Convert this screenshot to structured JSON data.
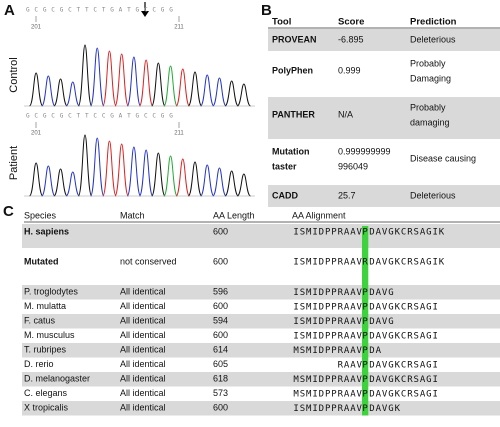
{
  "panel_a": {
    "label": "A",
    "control": {
      "sequence": "G C G C G C T T C T G A T G C C G G",
      "tick_left": "201",
      "tick_right": "211",
      "name": "Control"
    },
    "patient": {
      "sequence": "G C G C G C T T C C G A T G C C G G",
      "tick_left": "201",
      "tick_right": "211",
      "name": "Patient"
    }
  },
  "panel_b": {
    "label": "B",
    "headers": [
      "Tool",
      "Score",
      "Prediction"
    ],
    "rows": [
      [
        [
          "PROVEAN"
        ],
        [
          "-6.895"
        ],
        [
          "Deleterious"
        ]
      ],
      [
        [
          "PolyPhen"
        ],
        [
          "0.999"
        ],
        [
          "Probably",
          "Damaging"
        ]
      ],
      [
        [
          "PANTHER"
        ],
        [
          "N/A"
        ],
        [
          "Probably",
          "damaging"
        ]
      ],
      [
        [
          "Mutation",
          "taster"
        ],
        [
          "0.999999999",
          "996049"
        ],
        [
          "Disease causing"
        ]
      ],
      [
        [
          "CADD"
        ],
        [
          "25.7"
        ],
        [
          "Deleterious"
        ]
      ]
    ]
  },
  "panel_c": {
    "label": "C",
    "headers": [
      "Species",
      "Match",
      "AA Length",
      "AA Alignment"
    ],
    "rows": [
      {
        "species": "H. sapiens",
        "match": null,
        "length": "600",
        "before": "ISMIDPPRAAV",
        "site": "P",
        "after": "DAVGKCRSAGIK"
      },
      {
        "species": "Mutated",
        "match": "not conserved",
        "length": "600",
        "before": "ISMIDPPRAAV",
        "site": "R",
        "after": "DAVGKCRSAGIK"
      },
      {
        "species": "P. troglodytes",
        "match": "All identical",
        "length": "596",
        "before": "ISMIDPPRAAV",
        "site": "P",
        "after": "DAVG"
      },
      {
        "species": "M. mulatta",
        "match": "All identical",
        "length": "600",
        "before": "ISMIDPPRAAV",
        "site": "P",
        "after": "DAVGKCRSAGI"
      },
      {
        "species": "F. catus",
        "match": "All identical",
        "length": "594",
        "before": "ISMIDPPRAAV",
        "site": "P",
        "after": "DAVG"
      },
      {
        "species": "M. musculus",
        "match": "All identical",
        "length": "600",
        "before": "ISMIDPPRAAV",
        "site": "P",
        "after": "DAVGKCRSAGI"
      },
      {
        "species": "T. rubripes",
        "match": "All identical",
        "length": "614",
        "before": "MSMIDPPRAAV",
        "site": "P",
        "after": "DA"
      },
      {
        "species": "D. rerio",
        "match": "All identical",
        "length": "605",
        "before": "RAAV",
        "site": "P",
        "after": "DAVGKCRSAGI"
      },
      {
        "species": "D. melanogaster",
        "match": "All identical",
        "length": "618",
        "before": "MSMIDPPRAAV",
        "site": "P",
        "after": "DAVGKCRSAGI"
      },
      {
        "species": "C. elegans",
        "match": "All identical",
        "length": "573",
        "before": "MSMIDPPRAAV",
        "site": "P",
        "after": "DAVGKCRSAGI"
      },
      {
        "species": "X tropicalis",
        "match": "All identical",
        "length": "600",
        "before": "ISMIDPPRAAV",
        "site": "P",
        "after": "DAVGK"
      }
    ]
  }
}
